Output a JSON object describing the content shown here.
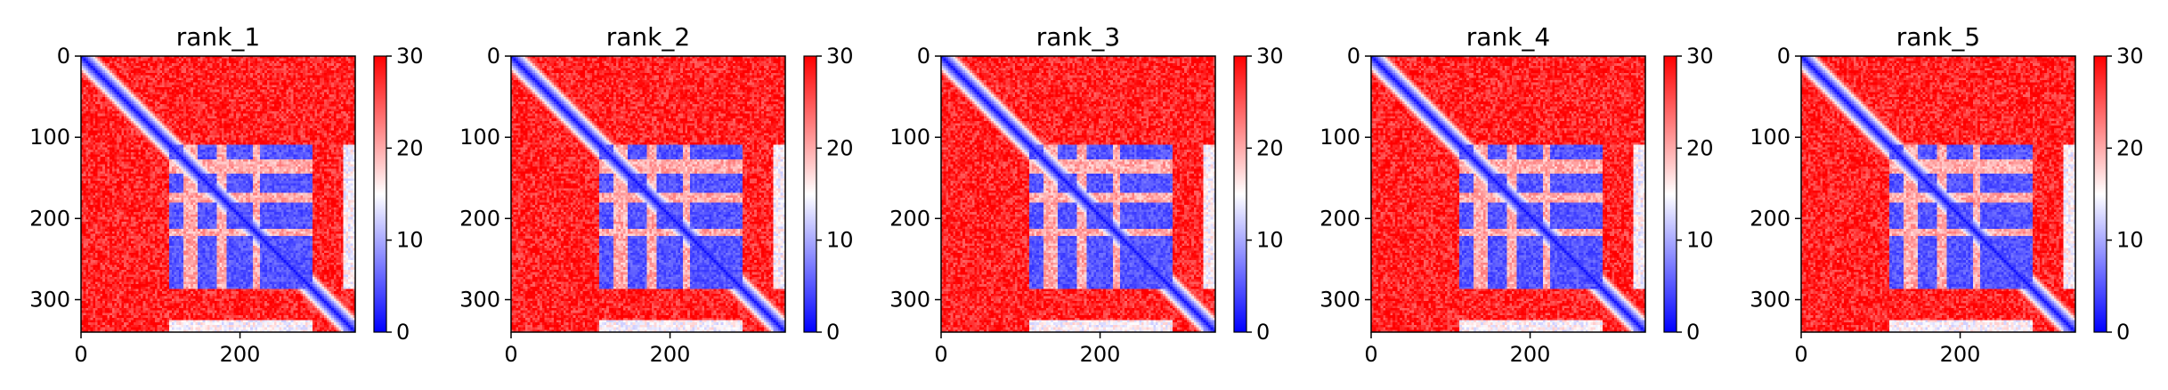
{
  "chart_data": [
    {
      "type": "heatmap",
      "title": "rank_1",
      "colormap": "bwr",
      "vmin": 0,
      "vmax": 30,
      "grid": false,
      "xlim": [
        0,
        345
      ],
      "ylim": [
        340,
        0
      ],
      "xticks": [
        0,
        200
      ],
      "yticks": [
        0,
        100,
        200,
        300
      ],
      "cbar_ticks": [
        0,
        10,
        20,
        30
      ],
      "legend": "colorbar-right",
      "blocks": [
        [
          112,
          290
        ],
        [
          112,
          290
        ]
      ],
      "diag_band": 10
    },
    {
      "type": "heatmap",
      "title": "rank_2",
      "colormap": "bwr",
      "vmin": 0,
      "vmax": 30,
      "grid": false,
      "xlim": [
        0,
        345
      ],
      "ylim": [
        340,
        0
      ],
      "xticks": [
        0,
        200
      ],
      "yticks": [
        0,
        100,
        200,
        300
      ],
      "cbar_ticks": [
        0,
        10,
        20,
        30
      ],
      "legend": "colorbar-right",
      "blocks": [
        [
          112,
          290
        ],
        [
          112,
          290
        ]
      ],
      "diag_band": 10
    },
    {
      "type": "heatmap",
      "title": "rank_3",
      "colormap": "bwr",
      "vmin": 0,
      "vmax": 30,
      "grid": false,
      "xlim": [
        0,
        345
      ],
      "ylim": [
        340,
        0
      ],
      "xticks": [
        0,
        200
      ],
      "yticks": [
        0,
        100,
        200,
        300
      ],
      "cbar_ticks": [
        0,
        10,
        20,
        30
      ],
      "legend": "colorbar-right",
      "blocks": [
        [
          112,
          290
        ],
        [
          112,
          290
        ]
      ],
      "diag_band": 10
    },
    {
      "type": "heatmap",
      "title": "rank_4",
      "colormap": "bwr",
      "vmin": 0,
      "vmax": 30,
      "grid": false,
      "xlim": [
        0,
        345
      ],
      "ylim": [
        340,
        0
      ],
      "xticks": [
        0,
        200
      ],
      "yticks": [
        0,
        100,
        200,
        300
      ],
      "cbar_ticks": [
        0,
        10,
        20,
        30
      ],
      "legend": "colorbar-right",
      "blocks": [
        [
          112,
          290
        ],
        [
          112,
          290
        ]
      ],
      "diag_band": 10
    },
    {
      "type": "heatmap",
      "title": "rank_5",
      "colormap": "bwr",
      "vmin": 0,
      "vmax": 30,
      "grid": false,
      "xlim": [
        0,
        345
      ],
      "ylim": [
        340,
        0
      ],
      "xticks": [
        0,
        200
      ],
      "yticks": [
        0,
        100,
        200,
        300
      ],
      "cbar_ticks": [
        0,
        10,
        20,
        30
      ],
      "legend": "colorbar-right",
      "blocks": [
        [
          112,
          290
        ],
        [
          112,
          290
        ]
      ],
      "diag_band": 10
    }
  ],
  "colors": {
    "low": "#0000ff",
    "mid": "#ffffff",
    "high": "#ff0000"
  }
}
